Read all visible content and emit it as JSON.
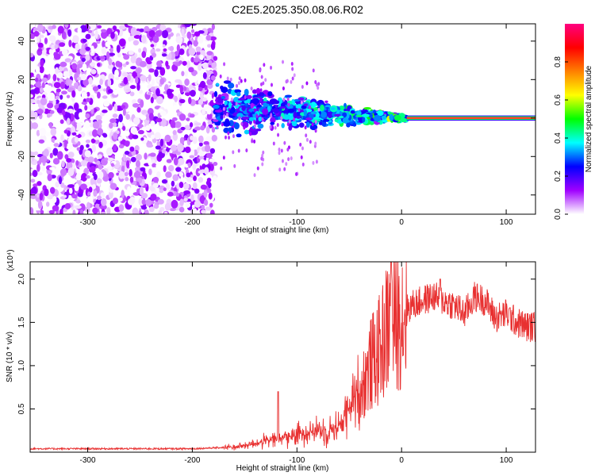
{
  "title": "C2E5.2025.350.08.06.R02",
  "chart_data": [
    {
      "type": "heatmap",
      "xlabel": "Height of straight line (km)",
      "ylabel": "Frequency (Hz)",
      "xlim": [
        -355,
        128
      ],
      "ylim": [
        -50,
        49
      ],
      "xticks": [
        -300,
        -200,
        -100,
        0,
        100
      ],
      "xtick_labels": [
        "-300",
        "-200",
        "-100",
        "0",
        "100"
      ],
      "yticks": [
        -40,
        -20,
        0,
        20,
        40
      ],
      "ytick_labels": [
        "-40",
        "-20",
        "0",
        "20",
        "40"
      ],
      "colorbar": {
        "label": "Normalized spectral amplitude",
        "range": [
          0,
          1
        ],
        "ticks": [
          0.0,
          0.2,
          0.4,
          0.6,
          0.8
        ],
        "tick_labels": [
          "0.0",
          "0.2",
          "0.4",
          "0.6",
          "0.8"
        ],
        "colormap": [
          "#ffffff",
          "#a000ff",
          "#0000ff",
          "#00ffff",
          "#00ff00",
          "#ffff00",
          "#ff8000",
          "#ff0000",
          "#ff0080"
        ]
      },
      "regions": [
        {
          "x_range": [
            -355,
            -178
          ],
          "f_range": [
            -50,
            49
          ],
          "amplitude": 0.1
        },
        {
          "x_range": [
            -178,
            5
          ],
          "center_freq_start": 5,
          "center_freq_end": 0,
          "amplitude": 0.25
        },
        {
          "x_range": [
            5,
            128
          ],
          "center_freq": 0,
          "amplitude": 1.0
        }
      ]
    },
    {
      "type": "line",
      "xlabel": "Height of straight line (km)",
      "ylabel": "SNR (10 * v/v)",
      "scale_label": "(x10⁴)",
      "xlim": [
        -355,
        128
      ],
      "ylim": [
        0,
        2.2
      ],
      "xticks": [
        -300,
        -200,
        -100,
        0,
        100
      ],
      "xtick_labels": [
        "-300",
        "-200",
        "-100",
        "0",
        "100"
      ],
      "yticks": [
        0.5,
        1.0,
        1.5,
        2.0
      ],
      "ytick_labels": [
        "0.5",
        "1.0",
        "1.5",
        "2.0"
      ],
      "color": "#e83030",
      "series": [
        {
          "x": [
            -355,
            -300,
            -250,
            -200,
            -180,
            -160,
            -140,
            -120,
            -100,
            -90,
            -80,
            -70,
            -60,
            -50,
            -40,
            -30,
            -25,
            -20,
            -15,
            -10,
            -5,
            0,
            10,
            20,
            30,
            40,
            50,
            60,
            70,
            80,
            90,
            100,
            110,
            120,
            128
          ],
          "y": [
            0.04,
            0.04,
            0.04,
            0.04,
            0.05,
            0.06,
            0.1,
            0.15,
            0.2,
            0.25,
            0.25,
            0.25,
            0.3,
            0.5,
            0.7,
            1.0,
            1.1,
            1.2,
            1.4,
            1.5,
            1.5,
            1.6,
            1.7,
            1.75,
            1.8,
            1.75,
            1.7,
            1.6,
            1.8,
            1.75,
            1.55,
            1.6,
            1.5,
            1.45,
            1.45
          ]
        }
      ],
      "annotations": [
        {
          "x": -118,
          "y": 0.7
        },
        {
          "x": -10,
          "y": 2.2
        },
        {
          "x": 37,
          "y": 2.0
        }
      ]
    }
  ]
}
